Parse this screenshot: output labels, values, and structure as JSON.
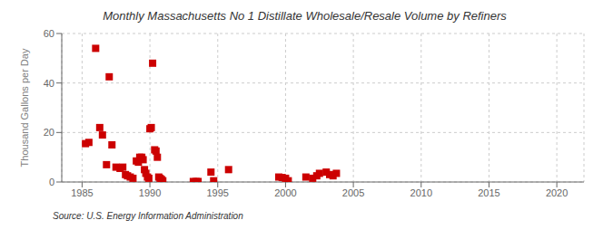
{
  "chart_data": {
    "type": "scatter",
    "title": "Monthly Massachusetts No 1 Distillate Wholesale/Resale Volume by Refiners",
    "ylabel": "Thousand Gallons per Day",
    "annotations": [
      "Source: U.S. Energy Information Administration"
    ],
    "x": [
      1985.25,
      1985.5,
      1986.0,
      1986.3,
      1986.5,
      1986.8,
      1987.0,
      1987.2,
      1987.5,
      1987.8,
      1988.0,
      1988.2,
      1988.35,
      1988.55,
      1988.75,
      1989.0,
      1989.15,
      1989.25,
      1989.4,
      1989.5,
      1989.6,
      1989.7,
      1989.82,
      1989.92,
      1990.0,
      1990.1,
      1990.2,
      1990.35,
      1990.45,
      1990.55,
      1990.65,
      1990.75,
      1990.85,
      1990.95,
      1993.2,
      1993.4,
      1993.55,
      1994.5,
      1994.7,
      1995.8,
      1999.5,
      1999.75,
      2000.0,
      2000.2,
      2001.5,
      2002.0,
      2002.3,
      2002.5,
      2003.0,
      2003.25,
      2003.5,
      2003.75
    ],
    "values": [
      15.5,
      16.0,
      54.0,
      22.0,
      19.0,
      7.0,
      42.5,
      15.0,
      6.0,
      5.5,
      6.0,
      3.0,
      2.5,
      2.0,
      1.5,
      8.5,
      8.0,
      10.0,
      10.0,
      9.0,
      5.0,
      3.5,
      2.0,
      1.5,
      21.5,
      22.0,
      48.0,
      13.0,
      12.5,
      10.0,
      2.0,
      1.5,
      1.0,
      0.5,
      0.2,
      0.2,
      0.2,
      4.0,
      0.5,
      5.0,
      2.0,
      1.8,
      1.5,
      0.5,
      2.0,
      1.5,
      2.5,
      3.5,
      4.0,
      3.0,
      2.5,
      3.5
    ],
    "color": "#cc0000",
    "marker": "square",
    "xlim": [
      1983.5,
      2022
    ],
    "ylim": [
      0,
      60
    ],
    "xticks": [
      1985,
      1990,
      1995,
      2000,
      2005,
      2010,
      2015,
      2020
    ],
    "yticks": [
      0,
      20,
      40,
      60
    ],
    "grid": true
  }
}
